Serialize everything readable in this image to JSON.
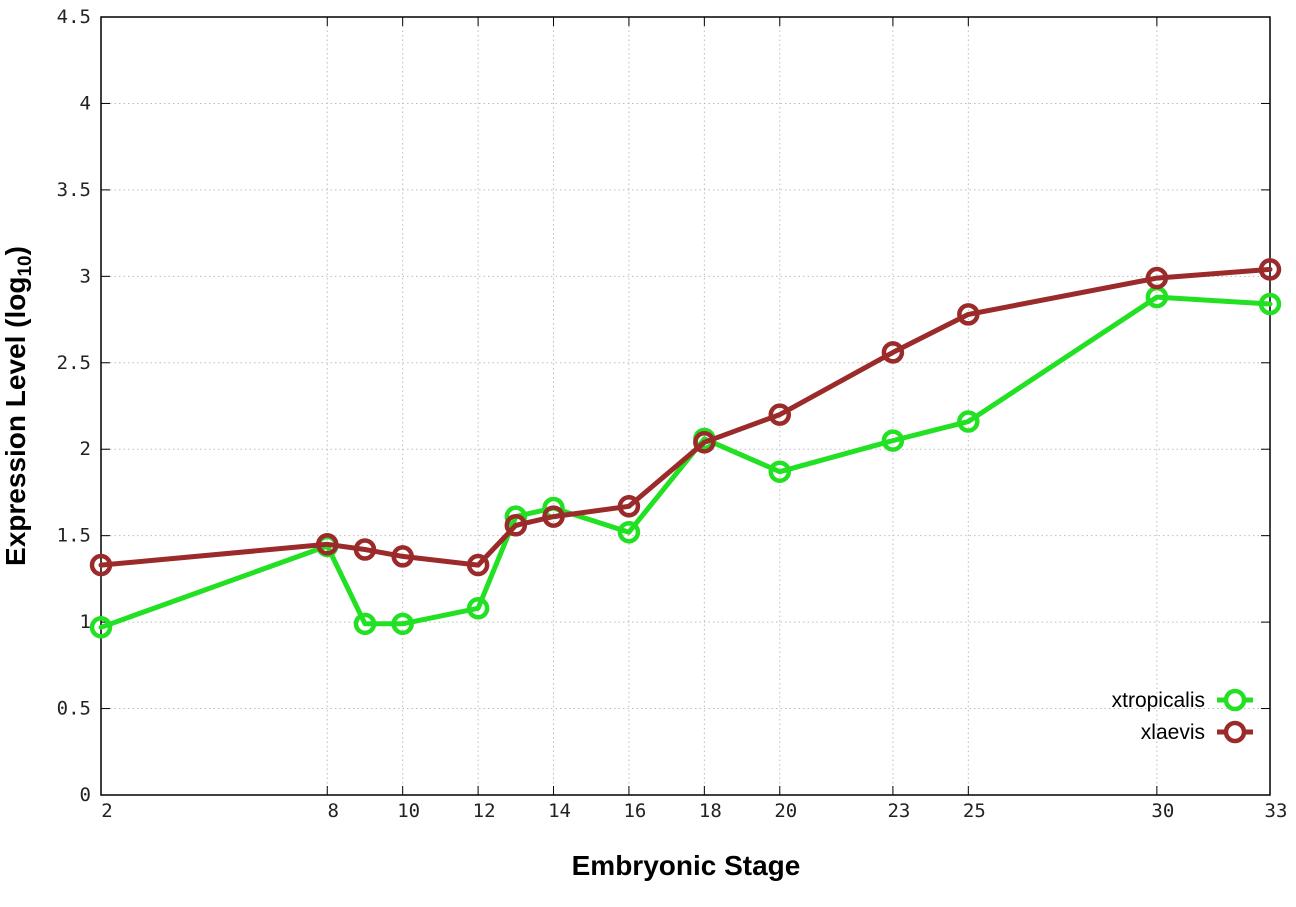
{
  "chart_data": {
    "type": "line",
    "xlabel": "Embryonic Stage",
    "ylabel_main": "Expression Level (log",
    "ylabel_sub": "10",
    "ylabel_tail": ")",
    "xlim": [
      2,
      33
    ],
    "ylim": [
      0,
      4.5
    ],
    "x_ticks": [
      2,
      8,
      10,
      12,
      14,
      16,
      18,
      20,
      23,
      25,
      30,
      33
    ],
    "y_ticks": [
      0,
      0.5,
      1,
      1.5,
      2,
      2.5,
      3,
      3.5,
      4,
      4.5
    ],
    "y_tick_labels": [
      "0",
      "0.5",
      "1",
      "1.5",
      "2",
      "2.5",
      "3",
      "3.5",
      "4",
      "4.5"
    ],
    "grid": true,
    "legend_position": "bottom-right",
    "series": [
      {
        "name": "xtropicalis",
        "color": "#22e022",
        "x": [
          2,
          8,
          9,
          10,
          12,
          13,
          14,
          16,
          18,
          20,
          23,
          25,
          30,
          33
        ],
        "values": [
          0.97,
          1.44,
          0.99,
          0.99,
          1.08,
          1.61,
          1.66,
          1.52,
          2.06,
          1.87,
          2.05,
          2.16,
          2.88,
          2.84
        ]
      },
      {
        "name": "xlaevis",
        "color": "#9b2a2a",
        "x": [
          2,
          8,
          9,
          10,
          12,
          13,
          14,
          16,
          18,
          20,
          23,
          25,
          30,
          33
        ],
        "values": [
          1.33,
          1.45,
          1.42,
          1.38,
          1.33,
          1.56,
          1.61,
          1.67,
          2.04,
          2.2,
          2.56,
          2.78,
          2.99,
          3.04
        ]
      }
    ]
  }
}
